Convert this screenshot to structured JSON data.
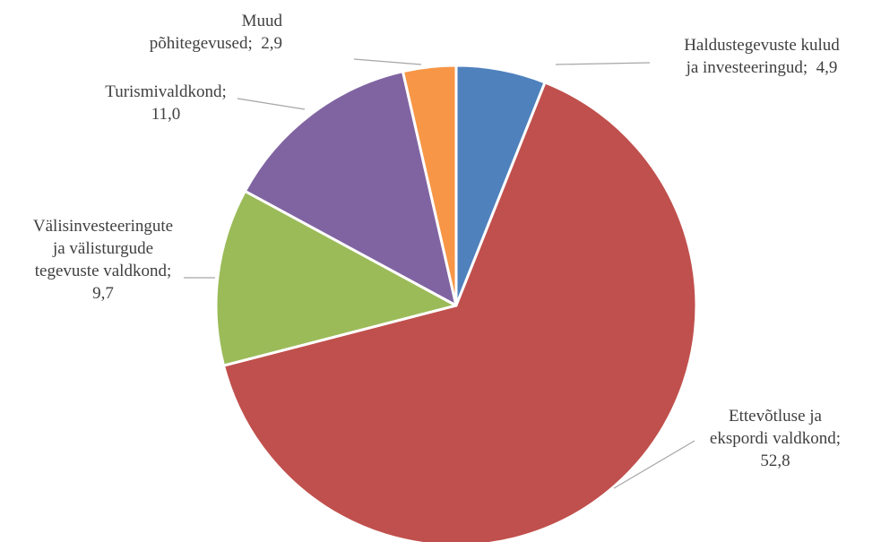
{
  "chart_data": {
    "type": "pie",
    "start_angle_deg": 0,
    "direction": "clockwise",
    "slices": [
      {
        "label": "Haldustegevuste kulud ja investeeringud",
        "value": 4.9,
        "display": "4,9",
        "color": "#4F81BD",
        "label_lines": [
          "Haldustegevuste kulud",
          "ja investeeringud;  4,9"
        ]
      },
      {
        "label": "Ettevõtluse ja ekspordi valdkond",
        "value": 52.8,
        "display": "52,8",
        "color": "#C0504D",
        "label_lines": [
          "Ettevõtluse ja",
          "ekspordi valdkond;",
          "52,8"
        ]
      },
      {
        "label": "Välisinvesteeringute ja välisturgude tegevuste valdkond",
        "value": 9.7,
        "display": "9,7",
        "color": "#9BBB59",
        "label_lines": [
          "Välisinvesteeringute",
          "ja välisturgude",
          "tegevuste valdkond;",
          "9,7"
        ]
      },
      {
        "label": "Turismivaldkond",
        "value": 11.0,
        "display": "11,0",
        "color": "#8064A2",
        "label_lines": [
          "Turismivaldkond;",
          "11,0"
        ]
      },
      {
        "label": "Muud põhitegevused",
        "value": 2.9,
        "display": "2,9",
        "color": "#F79646",
        "label_lines": [
          "Muud",
          "põhitegevused;  2,9"
        ]
      }
    ]
  }
}
